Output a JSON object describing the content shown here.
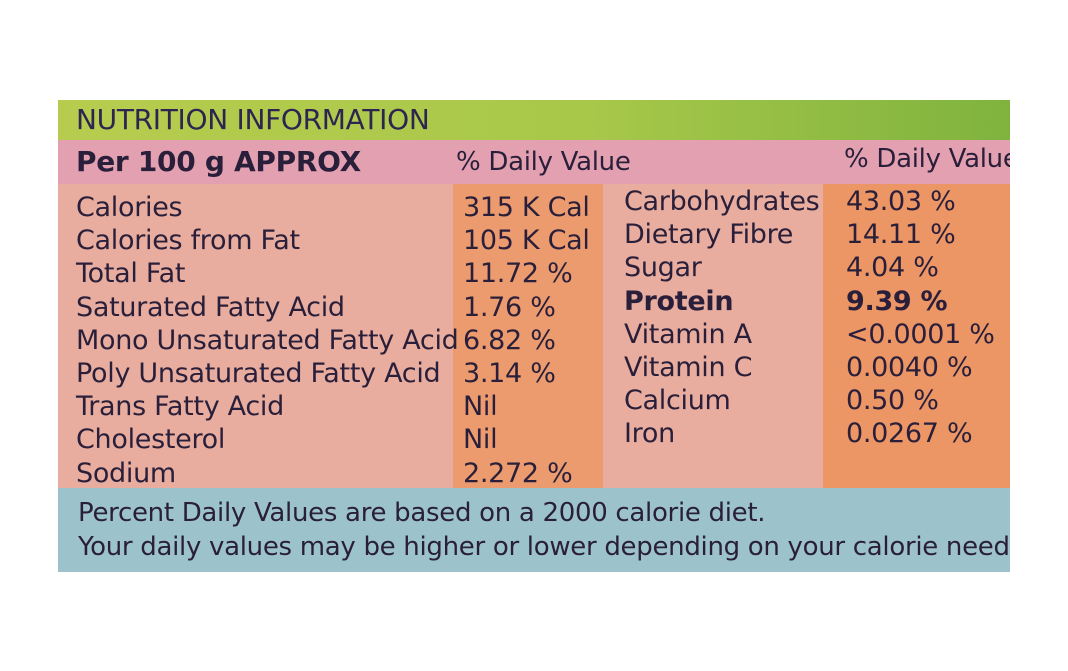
{
  "title": "NUTRITION INFORMATION",
  "header": {
    "per_label": "Per 100 g APPROX",
    "daily_value_1": "% Daily Value",
    "daily_value_2": "% Daily Value"
  },
  "left_rows": [
    {
      "name": "Calories",
      "value": "315 K Cal",
      "bold": false
    },
    {
      "name": "Calories from Fat",
      "value": "105 K Cal",
      "bold": false
    },
    {
      "name": "Total Fat",
      "value": "11.72 %",
      "bold": false
    },
    {
      "name": "Saturated Fatty Acid",
      "value": "1.76 %",
      "bold": false
    },
    {
      "name": "Mono Unsaturated Fatty Acid",
      "value": "6.82 %",
      "bold": false
    },
    {
      "name": "Poly Unsaturated Fatty Acid",
      "value": "3.14 %",
      "bold": false
    },
    {
      "name": "Trans Fatty Acid",
      "value": "Nil",
      "bold": false
    },
    {
      "name": "Cholesterol",
      "value": "Nil",
      "bold": false
    },
    {
      "name": "Sodium",
      "value": "2.272 %",
      "bold": false
    }
  ],
  "right_rows": [
    {
      "name": "Carbohydrates",
      "value": "43.03 %",
      "bold": false
    },
    {
      "name": "Dietary Fibre",
      "value": "14.11 %",
      "bold": false
    },
    {
      "name": "Sugar",
      "value": "4.04 %",
      "bold": false
    },
    {
      "name": "Protein",
      "value": "9.39 %",
      "bold": true
    },
    {
      "name": "Vitamin A",
      "value": "<0.0001 %",
      "bold": false
    },
    {
      "name": "Vitamin C",
      "value": "0.0040 %",
      "bold": false
    },
    {
      "name": "Calcium",
      "value": "0.50 %",
      "bold": false
    },
    {
      "name": "Iron",
      "value": "0.0267 %",
      "bold": false
    }
  ],
  "footer": {
    "line1": "Percent Daily Values are based on a 2000 calorie diet.",
    "line2": "Your daily values may be higher or lower depending on your calorie needs."
  }
}
